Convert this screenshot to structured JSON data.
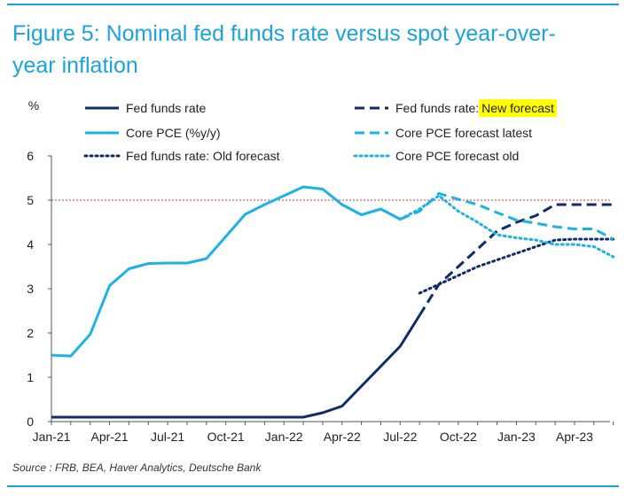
{
  "title": "Figure 5: Nominal fed funds rate versus spot year-over-year inflation",
  "source": "Source : FRB, BEA, Haver Analytics, Deutsche Bank",
  "colors": {
    "fed": "#0f2a6e",
    "pce": "#1cb2e8",
    "ref_line": "#e03030",
    "highlight": "#ffff00",
    "title": "#1aa3dd"
  },
  "chart_data": {
    "type": "line",
    "ylabel": "%",
    "ylim": [
      0,
      6
    ],
    "y_ticks": [
      "0",
      "1",
      "2",
      "3",
      "4",
      "5",
      "6"
    ],
    "x_tick_labels": [
      "Jan-21",
      "Apr-21",
      "Jul-21",
      "Oct-21",
      "Jan-22",
      "Apr-22",
      "Jul-22",
      "Oct-22",
      "Jan-23",
      "Apr-23"
    ],
    "x_tick_dates": [
      "2021-01",
      "2021-04",
      "2021-07",
      "2021-10",
      "2022-01",
      "2022-04",
      "2022-07",
      "2022-10",
      "2023-01",
      "2023-04"
    ],
    "x_range": [
      "2021-01",
      "2023-06"
    ],
    "reference_line": {
      "y": 5,
      "style": "dotted"
    },
    "legend_position": "top",
    "series": [
      {
        "name": "Fed funds rate",
        "style": "solid",
        "color": "#0f2a6e",
        "x": [
          "2021-01",
          "2021-02",
          "2021-03",
          "2021-04",
          "2021-05",
          "2021-06",
          "2021-07",
          "2021-08",
          "2021-09",
          "2021-10",
          "2021-11",
          "2021-12",
          "2022-01",
          "2022-02",
          "2022-03",
          "2022-04",
          "2022-05",
          "2022-06",
          "2022-07",
          "2022-08"
        ],
        "values": [
          0.1,
          0.1,
          0.1,
          0.1,
          0.1,
          0.1,
          0.1,
          0.1,
          0.1,
          0.1,
          0.1,
          0.1,
          0.1,
          0.1,
          0.2,
          0.35,
          0.8,
          1.25,
          1.7,
          2.4
        ]
      },
      {
        "name": "Core PCE (%y/y)",
        "style": "solid",
        "color": "#1cb2e8",
        "x": [
          "2021-01",
          "2021-02",
          "2021-03",
          "2021-04",
          "2021-05",
          "2021-06",
          "2021-07",
          "2021-08",
          "2021-09",
          "2021-10",
          "2021-11",
          "2021-12",
          "2022-01",
          "2022-02",
          "2022-03",
          "2022-04",
          "2022-05",
          "2022-06",
          "2022-07"
        ],
        "values": [
          1.5,
          1.48,
          1.97,
          3.07,
          3.45,
          3.57,
          3.58,
          3.58,
          3.68,
          4.18,
          4.68,
          4.9,
          5.1,
          5.3,
          5.25,
          4.9,
          4.67,
          4.8,
          4.57
        ]
      },
      {
        "name": "Fed funds rate: Old forecast",
        "style": "dotted",
        "color": "#0f2a6e",
        "x": [
          "2022-08",
          "2022-09",
          "2022-10",
          "2022-11",
          "2022-12",
          "2023-01",
          "2023-02",
          "2023-03",
          "2023-04",
          "2023-05",
          "2023-06"
        ],
        "values": [
          2.9,
          3.1,
          3.3,
          3.5,
          3.65,
          3.8,
          3.95,
          4.1,
          4.12,
          4.12,
          4.12
        ]
      },
      {
        "name": "Fed funds rate: New forecast",
        "style": "dashed",
        "color": "#0f2a6e",
        "x": [
          "2022-08",
          "2022-09",
          "2022-10",
          "2022-11",
          "2022-12",
          "2023-01",
          "2023-02",
          "2023-03",
          "2023-04",
          "2023-05",
          "2023-06"
        ],
        "values": [
          2.4,
          3.1,
          3.5,
          3.9,
          4.3,
          4.5,
          4.65,
          4.9,
          4.9,
          4.9,
          4.9
        ]
      },
      {
        "name": "Core PCE forecast latest",
        "style": "dashed",
        "color": "#1cb2e8",
        "x": [
          "2022-07",
          "2022-08",
          "2022-09",
          "2022-10",
          "2022-11",
          "2022-12",
          "2023-01",
          "2023-02",
          "2023-03",
          "2023-04",
          "2023-05",
          "2023-06"
        ],
        "values": [
          4.57,
          4.75,
          5.15,
          5.02,
          4.9,
          4.72,
          4.55,
          4.48,
          4.4,
          4.35,
          4.35,
          4.12
        ]
      },
      {
        "name": "Core PCE forecast old",
        "style": "dotted",
        "color": "#1cb2e8",
        "x": [
          "2022-07",
          "2022-08",
          "2022-09",
          "2022-10",
          "2022-11",
          "2022-12",
          "2023-01",
          "2023-02",
          "2023-03",
          "2023-04",
          "2023-05",
          "2023-06"
        ],
        "values": [
          4.57,
          4.8,
          5.1,
          4.75,
          4.5,
          4.22,
          4.15,
          4.1,
          4.0,
          4.0,
          3.95,
          3.72
        ]
      }
    ],
    "legend": [
      {
        "label": "Fed funds rate",
        "series": 0,
        "column": 0,
        "row": 0
      },
      {
        "label": "Core PCE (%y/y)",
        "series": 1,
        "column": 0,
        "row": 1
      },
      {
        "label": "Fed funds rate: Old forecast",
        "series": 2,
        "column": 0,
        "row": 2
      },
      {
        "label": "Fed funds rate: ",
        "highlight_label": "New forecast",
        "series": 3,
        "column": 1,
        "row": 0
      },
      {
        "label": "Core PCE forecast latest",
        "series": 4,
        "column": 1,
        "row": 1
      },
      {
        "label": "Core PCE forecast old",
        "series": 5,
        "column": 1,
        "row": 2
      }
    ]
  }
}
